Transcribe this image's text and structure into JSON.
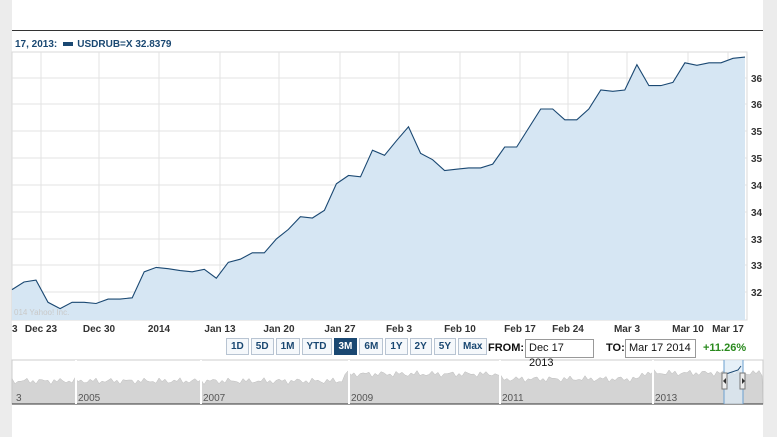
{
  "legend": {
    "date": "17, 2013:",
    "symbol": "USDRUB=X",
    "value": "32.8379"
  },
  "copyright": "014 Yahoo! Inc.",
  "range_buttons": [
    "1D",
    "5D",
    "1M",
    "YTD",
    "3M",
    "6M",
    "1Y",
    "2Y",
    "5Y",
    "Max"
  ],
  "active_range": "3M",
  "from_label": "FROM:",
  "from_value": "Dec 17 2013",
  "to_label": "TO:",
  "to_value": "Mar 17 2014",
  "change": "+11.26%",
  "colors": {
    "line": "#1a4872",
    "fill": "#d6e6f3",
    "grid": "#e3e3e3",
    "positive": "#2a8a1e"
  },
  "chart_data": {
    "type": "area",
    "series": [
      {
        "name": "USDRUB=X",
        "values": [
          32.3,
          32.42,
          32.45,
          32.1,
          32.0,
          32.1,
          32.1,
          32.08,
          32.15,
          32.15,
          32.17,
          32.58,
          32.65,
          32.63,
          32.6,
          32.58,
          32.62,
          32.48,
          32.73,
          32.78,
          32.88,
          32.88,
          33.1,
          33.25,
          33.45,
          33.43,
          33.55,
          33.97,
          34.1,
          34.08,
          34.5,
          34.42,
          34.65,
          34.87,
          34.45,
          34.35,
          34.18,
          34.2,
          34.22,
          34.22,
          34.28,
          34.55,
          34.55,
          34.85,
          35.15,
          35.15,
          34.98,
          34.98,
          35.15,
          35.45,
          35.43,
          35.45,
          35.85,
          35.52,
          35.52,
          35.57,
          35.88,
          35.84,
          35.88,
          35.88,
          35.95,
          35.97
        ]
      }
    ],
    "x_ticks": [
      "3",
      "Dec 23",
      "Dec 30",
      "2014",
      "Jan 13",
      "Jan 20",
      "Jan 27",
      "Feb 3",
      "Feb 10",
      "Feb 17",
      "Feb 24",
      "Mar 3",
      "Mar 10",
      "Mar 17"
    ],
    "y_ticks": [
      "32",
      "33",
      "33",
      "34",
      "34",
      "35",
      "35",
      "36",
      "36"
    ],
    "ylim": [
      31.82,
      36.05
    ],
    "grid": true
  },
  "navigator": {
    "labels": [
      "3",
      "2005",
      "2007",
      "2009",
      "2011",
      "2013"
    ]
  }
}
